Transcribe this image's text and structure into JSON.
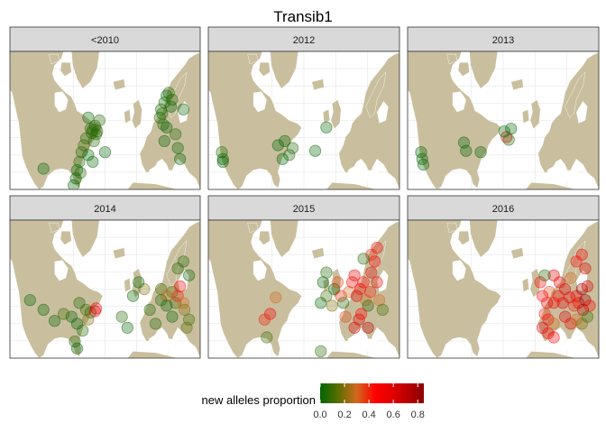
{
  "chart_data": {
    "type": "scatter",
    "title": "Transib1",
    "facet_kind": "map",
    "facets": [
      {
        "label": "<2010",
        "points": [
          {
            "x": 0.72,
            "y": 0.56,
            "v": 0.05
          },
          {
            "x": 0.76,
            "y": 0.54,
            "v": 0.05
          },
          {
            "x": 0.74,
            "y": 0.57,
            "v": 0.05
          },
          {
            "x": 0.73,
            "y": 0.59,
            "v": 0.08
          },
          {
            "x": 0.77,
            "y": 0.6,
            "v": 0.05
          },
          {
            "x": 0.78,
            "y": 0.58,
            "v": 0.05
          },
          {
            "x": 0.7,
            "y": 0.48,
            "v": 0.0
          },
          {
            "x": 0.68,
            "y": 0.63,
            "v": 0.05
          },
          {
            "x": 0.66,
            "y": 0.68,
            "v": 0.1
          },
          {
            "x": 0.8,
            "y": 0.5,
            "v": 0.05
          },
          {
            "x": 0.75,
            "y": 0.65,
            "v": 0.05
          },
          {
            "x": 0.64,
            "y": 0.73,
            "v": 0.05
          },
          {
            "x": 0.7,
            "y": 0.75,
            "v": 0.0
          },
          {
            "x": 0.74,
            "y": 0.8,
            "v": 0.0
          },
          {
            "x": 0.62,
            "y": 0.8,
            "v": 0.05
          },
          {
            "x": 0.6,
            "y": 0.86,
            "v": 0.0
          },
          {
            "x": 0.59,
            "y": 0.92,
            "v": 0.0
          },
          {
            "x": 0.57,
            "y": 0.97,
            "v": 0.0
          },
          {
            "x": 0.63,
            "y": 0.88,
            "v": 0.05
          },
          {
            "x": 0.85,
            "y": 0.73,
            "v": 0.0
          },
          {
            "x": 0.3,
            "y": 0.85,
            "v": 0.0
          },
          {
            "x": 1.35,
            "y": 0.42,
            "v": 0.05
          },
          {
            "x": 1.38,
            "y": 0.37,
            "v": 0.05
          },
          {
            "x": 1.36,
            "y": 0.45,
            "v": 0.05
          },
          {
            "x": 1.4,
            "y": 0.32,
            "v": 0.0
          },
          {
            "x": 1.42,
            "y": 0.3,
            "v": 0.05
          },
          {
            "x": 1.45,
            "y": 0.35,
            "v": 0.05
          },
          {
            "x": 1.34,
            "y": 0.48,
            "v": 0.05
          },
          {
            "x": 1.37,
            "y": 0.53,
            "v": 0.05
          },
          {
            "x": 1.4,
            "y": 0.55,
            "v": 0.0
          },
          {
            "x": 1.44,
            "y": 0.4,
            "v": 0.0
          },
          {
            "x": 1.55,
            "y": 0.42,
            "v": 0.0
          },
          {
            "x": 1.48,
            "y": 0.6,
            "v": 0.05
          },
          {
            "x": 1.5,
            "y": 0.7,
            "v": 0.0
          },
          {
            "x": 1.52,
            "y": 0.78,
            "v": 0.0
          },
          {
            "x": 1.38,
            "y": 0.65,
            "v": 0.0
          }
        ]
      },
      {
        "label": "2012",
        "points": [
          {
            "x": 0.62,
            "y": 0.68,
            "v": 0.0
          },
          {
            "x": 0.68,
            "y": 0.65,
            "v": 0.0
          },
          {
            "x": 0.75,
            "y": 0.7,
            "v": 0.05
          },
          {
            "x": 0.72,
            "y": 0.75,
            "v": 0.05
          },
          {
            "x": 0.66,
            "y": 0.78,
            "v": 0.0
          },
          {
            "x": 0.12,
            "y": 0.73,
            "v": 0.05
          },
          {
            "x": 0.13,
            "y": 0.78,
            "v": 0.0
          },
          {
            "x": 0.13,
            "y": 0.8,
            "v": 0.0
          },
          {
            "x": 1.05,
            "y": 0.55,
            "v": 0.0
          },
          {
            "x": 0.95,
            "y": 0.72,
            "v": 0.0
          }
        ]
      },
      {
        "label": "2013",
        "points": [
          {
            "x": 0.12,
            "y": 0.73,
            "v": 0.0
          },
          {
            "x": 0.13,
            "y": 0.78,
            "v": 0.0
          },
          {
            "x": 0.14,
            "y": 0.82,
            "v": 0.0
          },
          {
            "x": 0.5,
            "y": 0.66,
            "v": 0.0
          },
          {
            "x": 0.52,
            "y": 0.72,
            "v": 0.0
          },
          {
            "x": 0.65,
            "y": 0.73,
            "v": 0.0
          },
          {
            "x": 0.88,
            "y": 0.62,
            "v": 0.5
          },
          {
            "x": 0.9,
            "y": 0.64,
            "v": 0.05
          },
          {
            "x": 0.86,
            "y": 0.58,
            "v": 0.0
          },
          {
            "x": 0.92,
            "y": 0.56,
            "v": 0.0
          }
        ]
      },
      {
        "label": "2014",
        "points": [
          {
            "x": 0.68,
            "y": 0.65,
            "v": 0.1
          },
          {
            "x": 0.72,
            "y": 0.67,
            "v": 0.05
          },
          {
            "x": 0.76,
            "y": 0.66,
            "v": 0.6
          },
          {
            "x": 0.77,
            "y": 0.64,
            "v": 0.55
          },
          {
            "x": 0.7,
            "y": 0.72,
            "v": 0.2
          },
          {
            "x": 0.62,
            "y": 0.6,
            "v": 0.05
          },
          {
            "x": 0.55,
            "y": 0.7,
            "v": 0.0
          },
          {
            "x": 0.6,
            "y": 0.75,
            "v": 0.0
          },
          {
            "x": 0.65,
            "y": 0.8,
            "v": 0.05
          },
          {
            "x": 0.48,
            "y": 0.68,
            "v": 0.1
          },
          {
            "x": 0.18,
            "y": 0.58,
            "v": 0.0
          },
          {
            "x": 0.4,
            "y": 0.73,
            "v": 0.0
          },
          {
            "x": 0.58,
            "y": 0.88,
            "v": 0.05
          },
          {
            "x": 0.6,
            "y": 0.93,
            "v": 0.0
          },
          {
            "x": 0.3,
            "y": 0.65,
            "v": 0.0
          },
          {
            "x": 1.35,
            "y": 0.5,
            "v": 0.1
          },
          {
            "x": 1.4,
            "y": 0.55,
            "v": 0.3
          },
          {
            "x": 1.45,
            "y": 0.52,
            "v": 0.15
          },
          {
            "x": 1.48,
            "y": 0.6,
            "v": 0.1
          },
          {
            "x": 1.5,
            "y": 0.55,
            "v": 0.4
          },
          {
            "x": 1.52,
            "y": 0.48,
            "v": 0.5
          },
          {
            "x": 1.55,
            "y": 0.6,
            "v": 0.3
          },
          {
            "x": 1.56,
            "y": 0.65,
            "v": 0.2
          },
          {
            "x": 1.4,
            "y": 0.62,
            "v": 0.0
          },
          {
            "x": 1.35,
            "y": 0.58,
            "v": 0.05
          },
          {
            "x": 1.45,
            "y": 0.7,
            "v": 0.0
          },
          {
            "x": 1.3,
            "y": 0.75,
            "v": 0.05
          },
          {
            "x": 1.25,
            "y": 0.65,
            "v": 0.05
          },
          {
            "x": 1.2,
            "y": 0.5,
            "v": 0.2
          },
          {
            "x": 1.15,
            "y": 0.45,
            "v": 0.0
          },
          {
            "x": 1.1,
            "y": 0.55,
            "v": 0.0
          },
          {
            "x": 1.0,
            "y": 0.7,
            "v": 0.05
          },
          {
            "x": 1.05,
            "y": 0.78,
            "v": 0.0
          },
          {
            "x": 1.6,
            "y": 0.72,
            "v": 0.1
          },
          {
            "x": 1.6,
            "y": 0.4,
            "v": 0.0
          },
          {
            "x": 1.5,
            "y": 0.35,
            "v": 0.05
          },
          {
            "x": 1.55,
            "y": 0.3,
            "v": 0.05
          },
          {
            "x": 1.58,
            "y": 0.78,
            "v": 0.15
          }
        ]
      },
      {
        "label": "2015",
        "points": [
          {
            "x": 0.55,
            "y": 0.68,
            "v": 0.5
          },
          {
            "x": 0.5,
            "y": 0.72,
            "v": 0.4
          },
          {
            "x": 0.52,
            "y": 0.85,
            "v": 0.1
          },
          {
            "x": 0.6,
            "y": 0.56,
            "v": 0.3
          },
          {
            "x": 1.05,
            "y": 0.55,
            "v": 0.1
          },
          {
            "x": 1.0,
            "y": 0.6,
            "v": 0.0
          },
          {
            "x": 1.02,
            "y": 0.45,
            "v": 0.0
          },
          {
            "x": 1.05,
            "y": 0.38,
            "v": 0.05
          },
          {
            "x": 1.1,
            "y": 0.62,
            "v": 0.2
          },
          {
            "x": 1.12,
            "y": 0.5,
            "v": 0.0
          },
          {
            "x": 1.15,
            "y": 0.45,
            "v": 0.35
          },
          {
            "x": 1.18,
            "y": 0.55,
            "v": 0.4
          },
          {
            "x": 1.2,
            "y": 0.6,
            "v": 0.05
          },
          {
            "x": 1.25,
            "y": 0.52,
            "v": 0.3
          },
          {
            "x": 1.28,
            "y": 0.45,
            "v": 0.5
          },
          {
            "x": 1.3,
            "y": 0.4,
            "v": 0.55
          },
          {
            "x": 1.32,
            "y": 0.55,
            "v": 0.6
          },
          {
            "x": 1.35,
            "y": 0.5,
            "v": 0.5
          },
          {
            "x": 1.38,
            "y": 0.45,
            "v": 0.45
          },
          {
            "x": 1.4,
            "y": 0.58,
            "v": 0.3
          },
          {
            "x": 1.42,
            "y": 0.62,
            "v": 0.05
          },
          {
            "x": 1.44,
            "y": 0.52,
            "v": 0.4
          },
          {
            "x": 1.45,
            "y": 0.38,
            "v": 0.6
          },
          {
            "x": 1.48,
            "y": 0.3,
            "v": 0.5
          },
          {
            "x": 1.5,
            "y": 0.45,
            "v": 0.55
          },
          {
            "x": 1.52,
            "y": 0.58,
            "v": 0.3
          },
          {
            "x": 1.55,
            "y": 0.65,
            "v": 0.1
          },
          {
            "x": 1.36,
            "y": 0.68,
            "v": 0.45
          },
          {
            "x": 1.34,
            "y": 0.72,
            "v": 0.6
          },
          {
            "x": 1.3,
            "y": 0.78,
            "v": 0.6
          },
          {
            "x": 1.42,
            "y": 0.78,
            "v": 0.7
          },
          {
            "x": 1.22,
            "y": 0.7,
            "v": 0.35
          },
          {
            "x": 1.0,
            "y": 0.95,
            "v": 0.05
          },
          {
            "x": 1.5,
            "y": 0.2,
            "v": 0.5
          },
          {
            "x": 1.45,
            "y": 0.25,
            "v": 0.4
          },
          {
            "x": 1.38,
            "y": 0.28,
            "v": 0.05
          }
        ]
      },
      {
        "label": "2016",
        "points": [
          {
            "x": 1.3,
            "y": 0.4,
            "v": 0.6
          },
          {
            "x": 1.35,
            "y": 0.45,
            "v": 0.55
          },
          {
            "x": 1.4,
            "y": 0.5,
            "v": 0.6
          },
          {
            "x": 1.45,
            "y": 0.42,
            "v": 0.3
          },
          {
            "x": 1.5,
            "y": 0.55,
            "v": 0.5
          },
          {
            "x": 1.52,
            "y": 0.6,
            "v": 0.6
          },
          {
            "x": 1.55,
            "y": 0.5,
            "v": 0.8
          },
          {
            "x": 1.58,
            "y": 0.58,
            "v": 0.8
          },
          {
            "x": 1.56,
            "y": 0.65,
            "v": 0.75
          },
          {
            "x": 1.6,
            "y": 0.48,
            "v": 0.6
          },
          {
            "x": 1.62,
            "y": 0.62,
            "v": 0.5
          },
          {
            "x": 1.48,
            "y": 0.62,
            "v": 0.4
          },
          {
            "x": 1.44,
            "y": 0.56,
            "v": 0.55
          },
          {
            "x": 1.38,
            "y": 0.6,
            "v": 0.6
          },
          {
            "x": 1.34,
            "y": 0.55,
            "v": 0.5
          },
          {
            "x": 1.3,
            "y": 0.6,
            "v": 0.45
          },
          {
            "x": 1.26,
            "y": 0.52,
            "v": 0.35
          },
          {
            "x": 1.24,
            "y": 0.6,
            "v": 0.6
          },
          {
            "x": 1.22,
            "y": 0.68,
            "v": 0.4
          },
          {
            "x": 1.25,
            "y": 0.72,
            "v": 0.5
          },
          {
            "x": 1.3,
            "y": 0.75,
            "v": 0.3
          },
          {
            "x": 1.4,
            "y": 0.7,
            "v": 0.6
          },
          {
            "x": 1.45,
            "y": 0.75,
            "v": 0.55
          },
          {
            "x": 1.5,
            "y": 0.72,
            "v": 0.3
          },
          {
            "x": 1.55,
            "y": 0.75,
            "v": 0.2
          },
          {
            "x": 1.6,
            "y": 0.7,
            "v": 0.1
          },
          {
            "x": 1.58,
            "y": 0.35,
            "v": 0.6
          },
          {
            "x": 1.55,
            "y": 0.25,
            "v": 0.5
          },
          {
            "x": 1.5,
            "y": 0.3,
            "v": 0.45
          },
          {
            "x": 1.2,
            "y": 0.55,
            "v": 0.5
          },
          {
            "x": 1.18,
            "y": 0.45,
            "v": 0.45
          },
          {
            "x": 1.22,
            "y": 0.4,
            "v": 0.05
          },
          {
            "x": 1.25,
            "y": 0.82,
            "v": 0.45
          },
          {
            "x": 1.3,
            "y": 0.85,
            "v": 0.5
          },
          {
            "x": 1.2,
            "y": 0.78,
            "v": 0.6
          }
        ]
      }
    ],
    "legend": {
      "title": "new alleles proportion",
      "ticks": [
        0.0,
        0.2,
        0.4,
        0.6,
        0.8
      ],
      "tick_labels": [
        "0.0",
        "0.2",
        "0.4",
        "0.6",
        "0.8"
      ],
      "range": [
        0.0,
        0.85
      ],
      "placement": "bottom",
      "colors": [
        {
          "v": 0.0,
          "hex": "#006400"
        },
        {
          "v": 0.15,
          "hex": "#5c6e00"
        },
        {
          "v": 0.3,
          "hex": "#d2691e"
        },
        {
          "v": 0.45,
          "hex": "#ff0000"
        },
        {
          "v": 0.6,
          "hex": "#e00000"
        },
        {
          "v": 0.85,
          "hex": "#8b0000"
        }
      ]
    },
    "x_domain": [
      0,
      1.7
    ],
    "y_domain": [
      0,
      1
    ],
    "land_color": "#c9bf9e",
    "strip_color": "#d9d9d9",
    "grid": true
  }
}
